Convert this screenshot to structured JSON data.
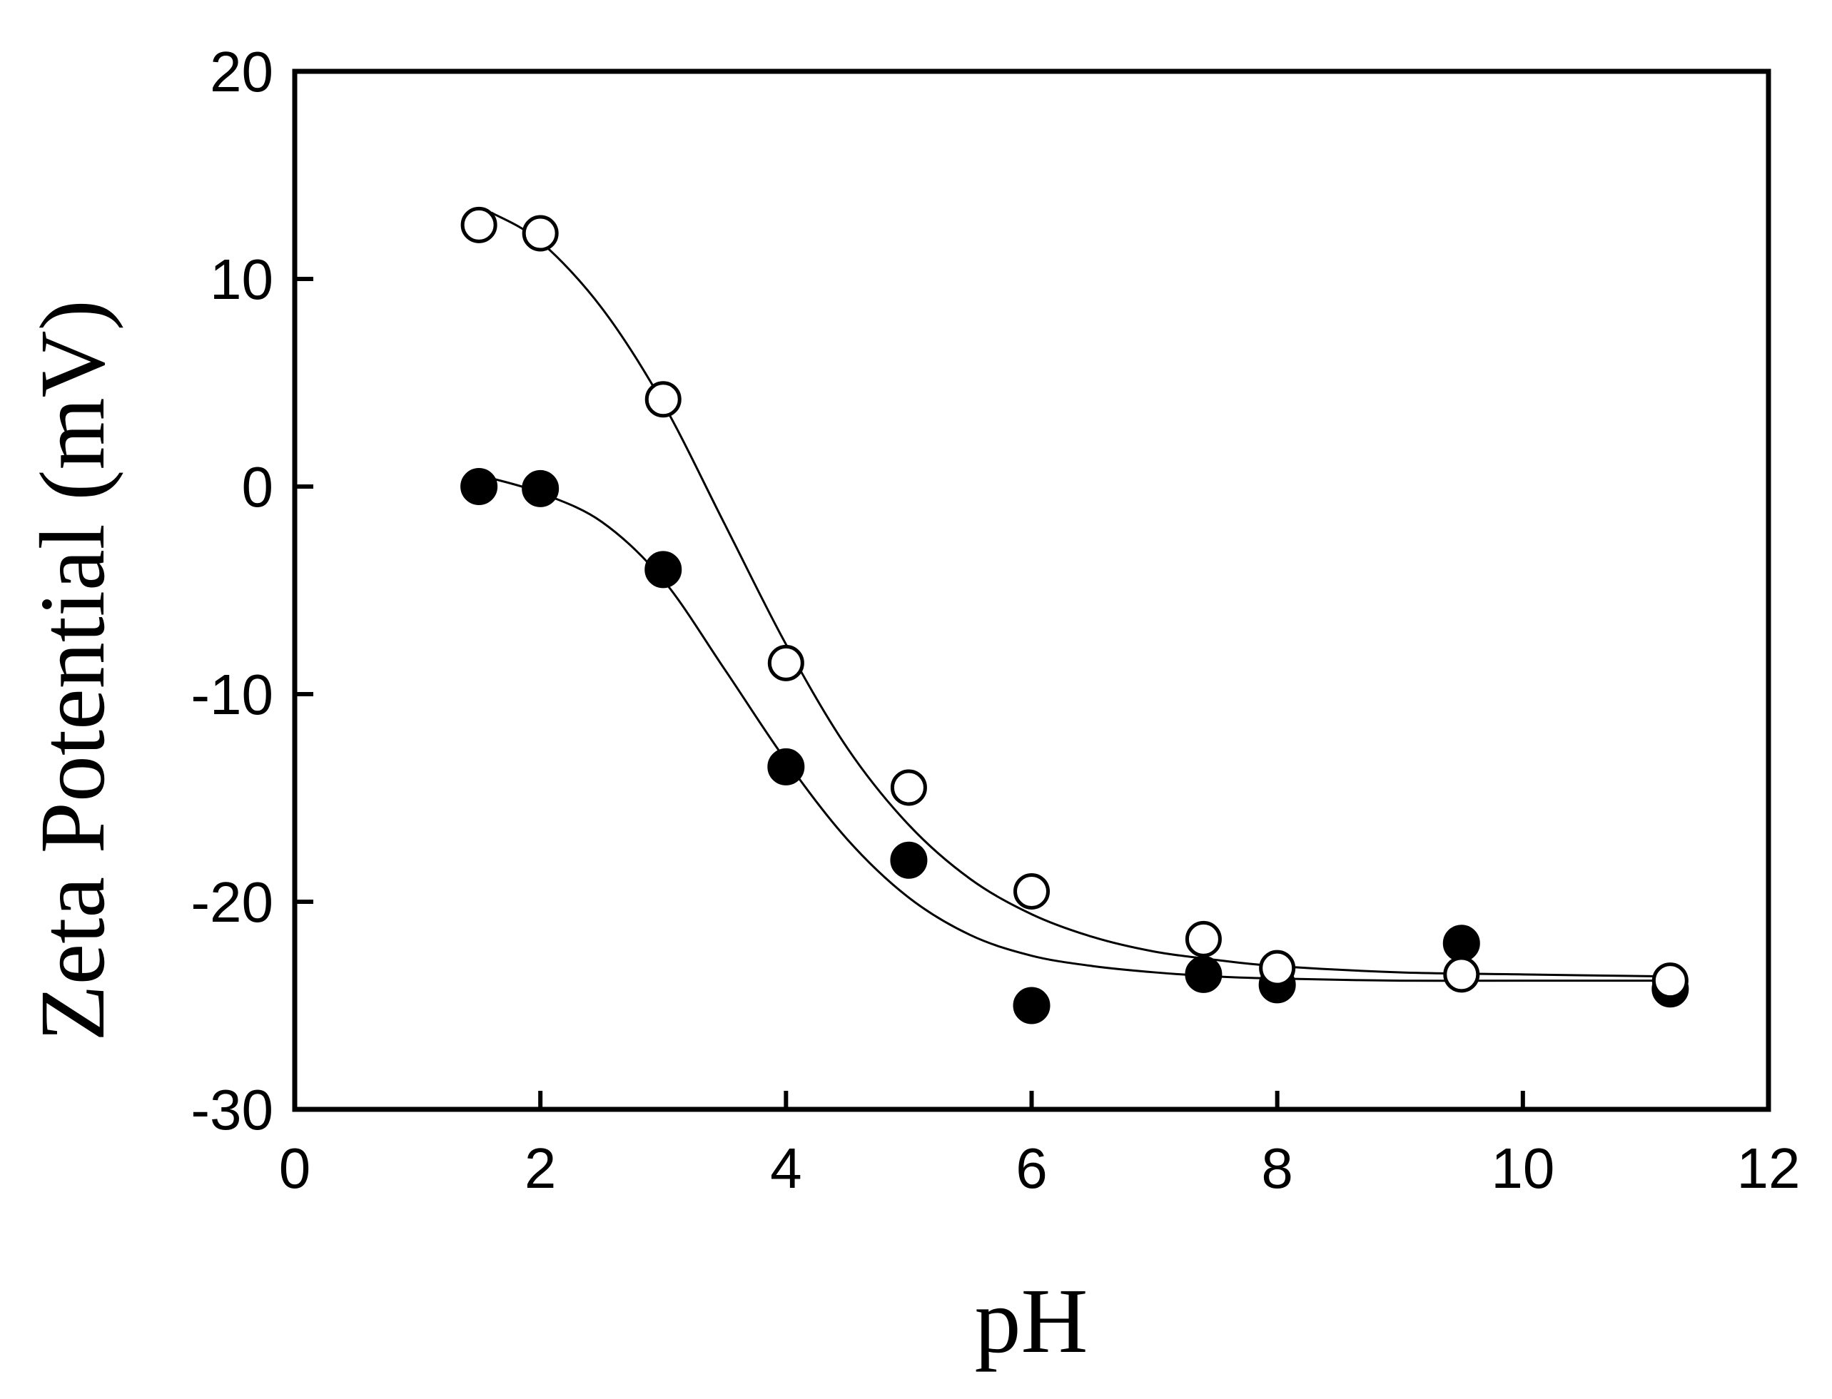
{
  "chart_data": {
    "type": "scatter",
    "title": "",
    "xlabel": "pH",
    "ylabel": "Zeta Potential (mV)",
    "xlim": [
      0,
      12
    ],
    "ylim": [
      -30,
      20
    ],
    "xticks": [
      0,
      2,
      4,
      6,
      8,
      10,
      12
    ],
    "yticks": [
      -30,
      -20,
      -10,
      0,
      10,
      20
    ],
    "grid": false,
    "series": [
      {
        "name": "open circles",
        "marker": "open-circle",
        "x": [
          1.5,
          2.0,
          3.0,
          4.0,
          5.0,
          6.0,
          7.4,
          8.0,
          9.5,
          11.2
        ],
        "y": [
          12.6,
          12.2,
          4.2,
          -8.5,
          -14.5,
          -19.5,
          -21.8,
          -23.2,
          -23.5,
          -23.8
        ],
        "fit_curve": {
          "x": [
            1.6,
            2,
            2.5,
            3,
            3.5,
            4,
            4.5,
            5,
            5.5,
            6,
            6.5,
            7,
            7.5,
            8,
            9,
            10,
            11.2
          ],
          "y": [
            13.2,
            11.8,
            8.6,
            4.0,
            -1.8,
            -7.6,
            -12.6,
            -16.3,
            -18.9,
            -20.6,
            -21.7,
            -22.4,
            -22.8,
            -23.1,
            -23.4,
            -23.5,
            -23.6
          ]
        }
      },
      {
        "name": "filled circles",
        "marker": "filled-circle",
        "x": [
          1.5,
          2.0,
          3.0,
          4.0,
          5.0,
          6.0,
          7.4,
          8.0,
          9.5,
          11.2
        ],
        "y": [
          0.0,
          -0.1,
          -4.0,
          -13.5,
          -18.0,
          -25.0,
          -23.5,
          -24.0,
          -22.0,
          -24.2
        ],
        "fit_curve": {
          "x": [
            1.6,
            2,
            2.5,
            3,
            3.5,
            4,
            4.5,
            5,
            5.5,
            6,
            6.5,
            7,
            7.5,
            8,
            9,
            10,
            11.2
          ],
          "y": [
            0.4,
            -0.3,
            -1.7,
            -4.5,
            -8.8,
            -13.2,
            -17.0,
            -19.8,
            -21.6,
            -22.6,
            -23.1,
            -23.4,
            -23.6,
            -23.7,
            -23.8,
            -23.8,
            -23.8
          ]
        }
      }
    ]
  }
}
